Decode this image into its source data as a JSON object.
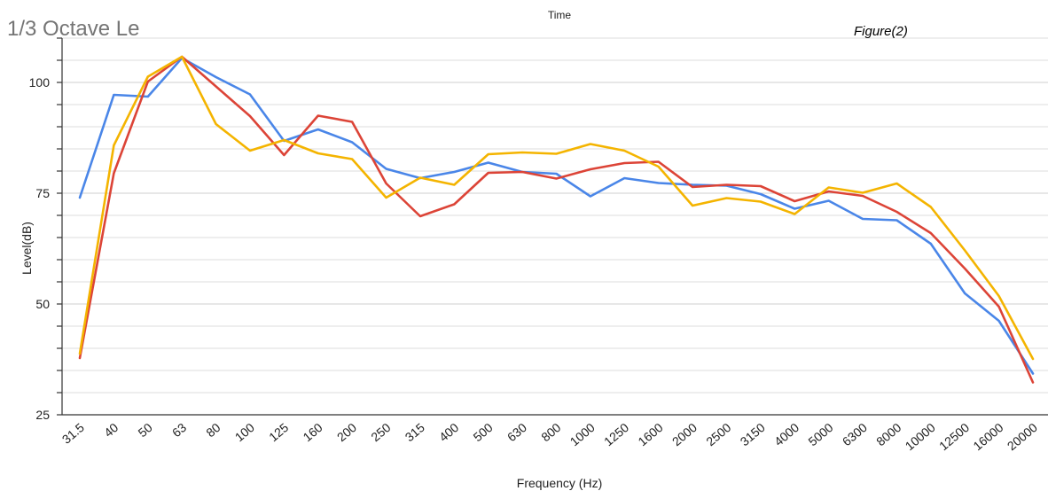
{
  "chart_data": {
    "type": "line",
    "title": "1/3 Octave Le",
    "subtitle": "Time",
    "annotation": "Figure(2)",
    "xlabel": "Frequency (Hz)",
    "ylabel": "Level(dB)",
    "ylim": [
      25,
      110
    ],
    "yticks": [
      25,
      50,
      75,
      100
    ],
    "grid": true,
    "legend": "none",
    "categories": [
      "31.5",
      "40",
      "50",
      "63",
      "80",
      "100",
      "125",
      "160",
      "200",
      "250",
      "315",
      "400",
      "500",
      "630",
      "800",
      "1000",
      "1250",
      "1600",
      "2000",
      "2500",
      "3150",
      "4000",
      "5000",
      "6300",
      "8000",
      "10000",
      "12500",
      "16000",
      "20000"
    ],
    "series": [
      {
        "color": "#4a86e8",
        "values": [
          74,
          97.2,
          96.8,
          105.5,
          101.2,
          97.3,
          86.8,
          89.4,
          86.5,
          80.5,
          78.4,
          79.8,
          81.9,
          79.8,
          79.4,
          74.3,
          78.4,
          77.3,
          76.9,
          76.7,
          74.8,
          71.5,
          73.3,
          69.2,
          68.9,
          63.6,
          52.4,
          46.2,
          34.3
        ]
      },
      {
        "color": "#dc4437",
        "values": [
          37.8,
          79.5,
          100.2,
          105.8,
          99.1,
          92.4,
          83.6,
          92.5,
          91.1,
          77.2,
          69.8,
          72.5,
          79.6,
          79.8,
          78.3,
          80.4,
          81.8,
          82.1,
          76.4,
          76.9,
          76.6,
          73.2,
          75.4,
          74.4,
          70.8,
          66.0,
          58.0,
          49.4,
          32.3
        ]
      },
      {
        "color": "#f4b400",
        "values": [
          38.8,
          85.8,
          101.3,
          105.8,
          90.6,
          84.6,
          87.0,
          84.0,
          82.7,
          74.0,
          78.5,
          76.9,
          83.8,
          84.2,
          83.9,
          86.1,
          84.6,
          81.0,
          72.2,
          73.9,
          73.1,
          70.3,
          76.3,
          75.1,
          77.2,
          71.9,
          62.1,
          51.8,
          37.6
        ]
      }
    ]
  }
}
